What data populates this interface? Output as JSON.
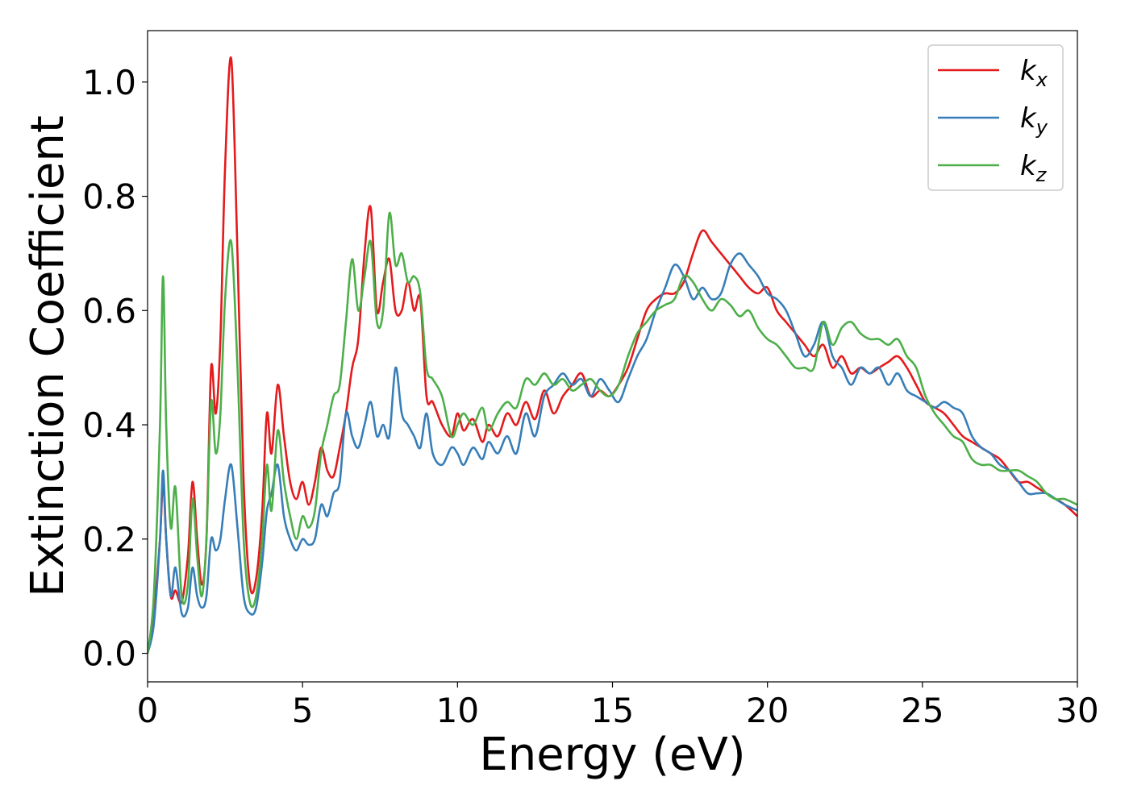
{
  "chart_data": {
    "type": "line",
    "xlabel": "Energy (eV)",
    "ylabel": "Extinction Coefficient",
    "xlim": [
      0,
      30
    ],
    "ylim": [
      -0.05,
      1.09
    ],
    "xticks": [
      0,
      5,
      10,
      15,
      20,
      25,
      30
    ],
    "xtick_labels": [
      "0",
      "5",
      "10",
      "15",
      "20",
      "25",
      "30"
    ],
    "yticks": [
      0.0,
      0.2,
      0.4,
      0.6,
      0.8,
      1.0
    ],
    "ytick_labels": [
      "0.0",
      "0.2",
      "0.4",
      "0.6",
      "0.8",
      "1.0"
    ],
    "grid": false,
    "legend_position": "top-right",
    "series": [
      {
        "name": "k",
        "subscript": "x",
        "color": "#e41a1c",
        "x": [
          0,
          0.2,
          0.4,
          0.5,
          0.6,
          0.75,
          0.9,
          1.1,
          1.3,
          1.45,
          1.6,
          1.75,
          1.9,
          2.05,
          2.2,
          2.35,
          2.5,
          2.7,
          2.9,
          3.1,
          3.3,
          3.5,
          3.7,
          3.85,
          4.0,
          4.2,
          4.4,
          4.6,
          4.8,
          5.0,
          5.2,
          5.4,
          5.6,
          5.8,
          6.0,
          6.2,
          6.4,
          6.6,
          6.8,
          7.0,
          7.2,
          7.4,
          7.6,
          7.8,
          8.0,
          8.2,
          8.4,
          8.6,
          8.8,
          9.0,
          9.2,
          9.5,
          9.8,
          10.0,
          10.2,
          10.5,
          10.8,
          11.0,
          11.3,
          11.6,
          11.9,
          12.2,
          12.5,
          12.8,
          13.1,
          13.4,
          13.7,
          14.0,
          14.3,
          14.6,
          14.9,
          15.2,
          15.5,
          15.8,
          16.1,
          16.4,
          16.7,
          17.0,
          17.3,
          17.6,
          17.9,
          18.2,
          18.5,
          18.8,
          19.1,
          19.4,
          19.7,
          20.0,
          20.3,
          20.6,
          20.9,
          21.2,
          21.5,
          21.8,
          22.1,
          22.4,
          22.7,
          23.0,
          23.3,
          23.6,
          23.9,
          24.2,
          24.5,
          24.8,
          25.1,
          25.4,
          25.7,
          26.0,
          26.3,
          26.6,
          26.9,
          27.2,
          27.5,
          27.8,
          28.1,
          28.4,
          28.7,
          29.0,
          29.3,
          29.6,
          30.0
        ],
        "y": [
          0.0,
          0.07,
          0.2,
          0.3,
          0.2,
          0.1,
          0.11,
          0.09,
          0.17,
          0.3,
          0.2,
          0.12,
          0.2,
          0.5,
          0.42,
          0.55,
          0.85,
          1.04,
          0.7,
          0.3,
          0.12,
          0.13,
          0.25,
          0.42,
          0.35,
          0.47,
          0.38,
          0.3,
          0.27,
          0.3,
          0.26,
          0.3,
          0.36,
          0.32,
          0.31,
          0.36,
          0.42,
          0.5,
          0.55,
          0.7,
          0.78,
          0.6,
          0.65,
          0.69,
          0.6,
          0.6,
          0.65,
          0.6,
          0.62,
          0.45,
          0.44,
          0.4,
          0.38,
          0.42,
          0.39,
          0.41,
          0.37,
          0.4,
          0.38,
          0.42,
          0.4,
          0.44,
          0.41,
          0.46,
          0.42,
          0.45,
          0.47,
          0.49,
          0.45,
          0.46,
          0.45,
          0.47,
          0.5,
          0.55,
          0.6,
          0.62,
          0.63,
          0.63,
          0.65,
          0.7,
          0.74,
          0.72,
          0.7,
          0.68,
          0.66,
          0.64,
          0.63,
          0.64,
          0.6,
          0.58,
          0.56,
          0.54,
          0.52,
          0.54,
          0.5,
          0.52,
          0.49,
          0.5,
          0.49,
          0.5,
          0.51,
          0.52,
          0.5,
          0.47,
          0.44,
          0.43,
          0.42,
          0.4,
          0.38,
          0.37,
          0.36,
          0.35,
          0.34,
          0.32,
          0.3,
          0.3,
          0.29,
          0.28,
          0.27,
          0.26,
          0.24
        ]
      },
      {
        "name": "k",
        "subscript": "y",
        "color": "#377eb8",
        "x": [
          0,
          0.2,
          0.4,
          0.5,
          0.6,
          0.75,
          0.9,
          1.1,
          1.3,
          1.45,
          1.6,
          1.75,
          1.9,
          2.05,
          2.2,
          2.35,
          2.5,
          2.7,
          2.9,
          3.1,
          3.3,
          3.5,
          3.7,
          3.85,
          4.0,
          4.2,
          4.4,
          4.6,
          4.8,
          5.0,
          5.2,
          5.4,
          5.6,
          5.8,
          6.0,
          6.2,
          6.4,
          6.6,
          6.8,
          7.0,
          7.2,
          7.4,
          7.6,
          7.8,
          8.0,
          8.2,
          8.4,
          8.6,
          8.8,
          9.0,
          9.2,
          9.5,
          9.8,
          10.0,
          10.2,
          10.5,
          10.8,
          11.0,
          11.3,
          11.6,
          11.9,
          12.2,
          12.5,
          12.8,
          13.1,
          13.4,
          13.7,
          14.0,
          14.3,
          14.6,
          14.9,
          15.2,
          15.5,
          15.8,
          16.1,
          16.4,
          16.7,
          17.0,
          17.3,
          17.6,
          17.9,
          18.2,
          18.5,
          18.8,
          19.1,
          19.4,
          19.7,
          20.0,
          20.3,
          20.6,
          20.9,
          21.2,
          21.5,
          21.8,
          22.1,
          22.4,
          22.7,
          23.0,
          23.3,
          23.6,
          23.9,
          24.2,
          24.5,
          24.8,
          25.1,
          25.4,
          25.7,
          26.0,
          26.3,
          26.6,
          26.9,
          27.2,
          27.5,
          27.8,
          28.1,
          28.4,
          28.7,
          29.0,
          29.3,
          29.6,
          30.0
        ],
        "y": [
          0.0,
          0.05,
          0.2,
          0.32,
          0.2,
          0.1,
          0.15,
          0.07,
          0.08,
          0.15,
          0.1,
          0.08,
          0.1,
          0.2,
          0.18,
          0.2,
          0.27,
          0.33,
          0.22,
          0.1,
          0.07,
          0.08,
          0.16,
          0.25,
          0.28,
          0.33,
          0.24,
          0.2,
          0.18,
          0.2,
          0.19,
          0.2,
          0.26,
          0.24,
          0.28,
          0.3,
          0.42,
          0.38,
          0.36,
          0.4,
          0.44,
          0.38,
          0.4,
          0.38,
          0.5,
          0.42,
          0.4,
          0.38,
          0.36,
          0.42,
          0.35,
          0.33,
          0.36,
          0.35,
          0.33,
          0.36,
          0.34,
          0.37,
          0.35,
          0.38,
          0.35,
          0.42,
          0.38,
          0.45,
          0.47,
          0.49,
          0.47,
          0.48,
          0.45,
          0.48,
          0.46,
          0.44,
          0.48,
          0.52,
          0.55,
          0.6,
          0.64,
          0.68,
          0.66,
          0.62,
          0.64,
          0.62,
          0.63,
          0.68,
          0.7,
          0.68,
          0.66,
          0.63,
          0.62,
          0.6,
          0.56,
          0.52,
          0.54,
          0.58,
          0.52,
          0.5,
          0.47,
          0.5,
          0.49,
          0.5,
          0.47,
          0.49,
          0.46,
          0.45,
          0.44,
          0.43,
          0.44,
          0.43,
          0.42,
          0.38,
          0.36,
          0.35,
          0.33,
          0.32,
          0.3,
          0.28,
          0.28,
          0.28,
          0.27,
          0.26,
          0.25
        ]
      },
      {
        "name": "k",
        "subscript": "z",
        "color": "#4daf4a",
        "x": [
          0,
          0.2,
          0.4,
          0.5,
          0.6,
          0.75,
          0.9,
          1.1,
          1.3,
          1.45,
          1.6,
          1.75,
          1.9,
          2.05,
          2.2,
          2.35,
          2.5,
          2.7,
          2.9,
          3.1,
          3.3,
          3.5,
          3.7,
          3.85,
          4.0,
          4.2,
          4.4,
          4.6,
          4.8,
          5.0,
          5.2,
          5.4,
          5.6,
          5.8,
          6.0,
          6.2,
          6.4,
          6.6,
          6.8,
          7.0,
          7.2,
          7.4,
          7.6,
          7.8,
          8.0,
          8.2,
          8.4,
          8.6,
          8.8,
          9.0,
          9.2,
          9.5,
          9.8,
          10.0,
          10.2,
          10.5,
          10.8,
          11.0,
          11.3,
          11.6,
          11.9,
          12.2,
          12.5,
          12.8,
          13.1,
          13.4,
          13.7,
          14.0,
          14.3,
          14.6,
          14.9,
          15.2,
          15.5,
          15.8,
          16.1,
          16.4,
          16.7,
          17.0,
          17.3,
          17.6,
          17.9,
          18.2,
          18.5,
          18.8,
          19.1,
          19.4,
          19.7,
          20.0,
          20.3,
          20.6,
          20.9,
          21.2,
          21.5,
          21.8,
          22.1,
          22.4,
          22.7,
          23.0,
          23.3,
          23.6,
          23.9,
          24.2,
          24.5,
          24.8,
          25.1,
          25.4,
          25.7,
          26.0,
          26.3,
          26.6,
          26.9,
          27.2,
          27.5,
          27.8,
          28.1,
          28.4,
          28.7,
          29.0,
          29.3,
          29.6,
          30.0
        ],
        "y": [
          0.0,
          0.1,
          0.4,
          0.66,
          0.4,
          0.22,
          0.29,
          0.1,
          0.12,
          0.27,
          0.17,
          0.1,
          0.2,
          0.44,
          0.35,
          0.42,
          0.62,
          0.72,
          0.5,
          0.2,
          0.09,
          0.1,
          0.2,
          0.33,
          0.25,
          0.39,
          0.3,
          0.24,
          0.2,
          0.24,
          0.22,
          0.25,
          0.35,
          0.4,
          0.45,
          0.47,
          0.58,
          0.69,
          0.6,
          0.66,
          0.72,
          0.58,
          0.6,
          0.77,
          0.68,
          0.7,
          0.65,
          0.66,
          0.63,
          0.5,
          0.48,
          0.45,
          0.38,
          0.4,
          0.42,
          0.4,
          0.43,
          0.39,
          0.42,
          0.44,
          0.43,
          0.48,
          0.47,
          0.49,
          0.47,
          0.48,
          0.46,
          0.47,
          0.48,
          0.46,
          0.45,
          0.47,
          0.52,
          0.56,
          0.58,
          0.6,
          0.61,
          0.62,
          0.66,
          0.65,
          0.62,
          0.6,
          0.62,
          0.61,
          0.59,
          0.6,
          0.57,
          0.55,
          0.54,
          0.52,
          0.5,
          0.5,
          0.5,
          0.58,
          0.54,
          0.57,
          0.58,
          0.56,
          0.55,
          0.55,
          0.54,
          0.55,
          0.52,
          0.5,
          0.45,
          0.42,
          0.4,
          0.38,
          0.37,
          0.34,
          0.33,
          0.33,
          0.32,
          0.32,
          0.32,
          0.31,
          0.3,
          0.28,
          0.27,
          0.27,
          0.26
        ]
      }
    ]
  }
}
